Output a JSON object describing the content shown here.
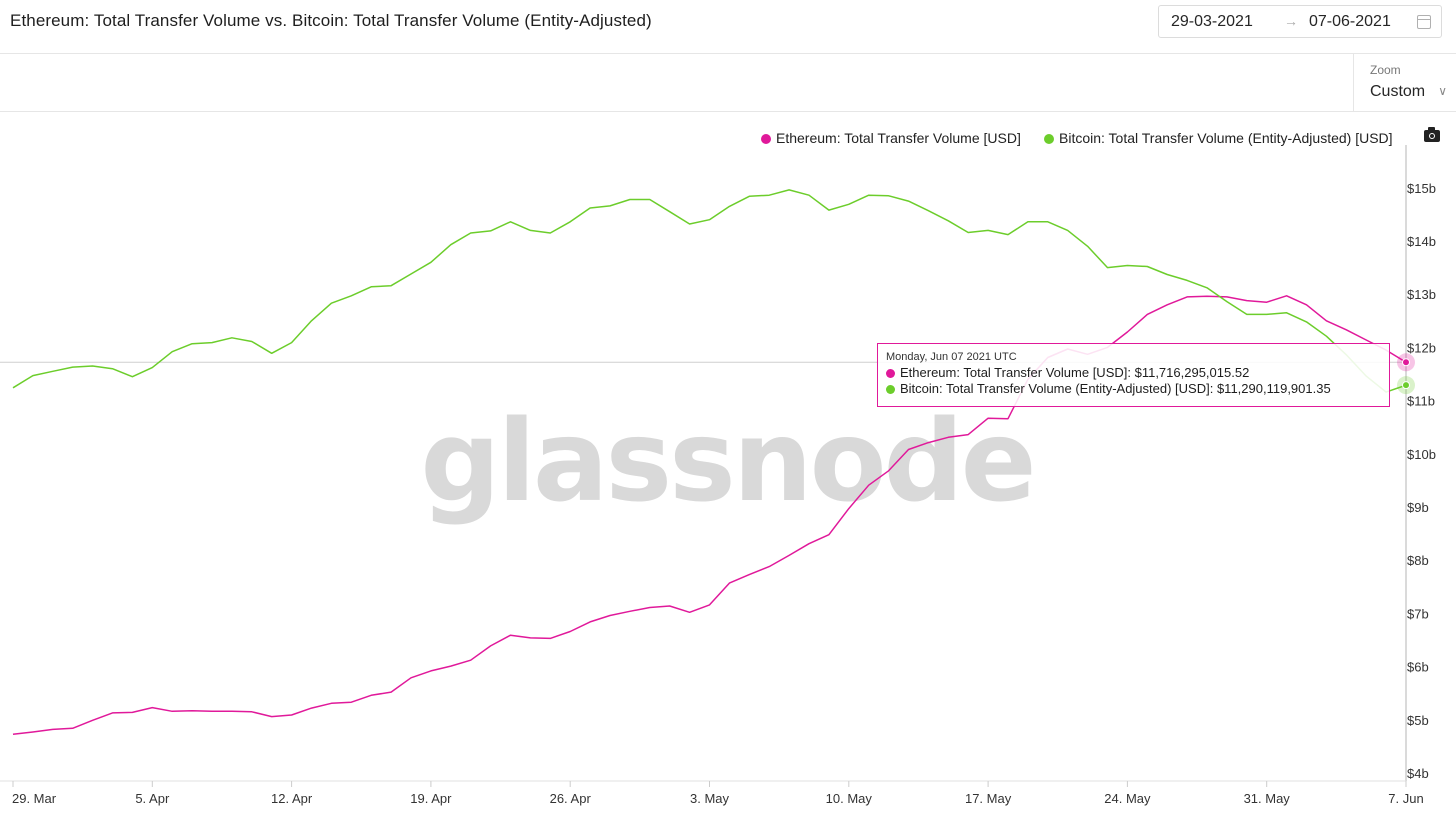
{
  "header": {
    "title": "Ethereum: Total Transfer Volume vs. Bitcoin: Total Transfer Volume (Entity-Adjusted)",
    "date_from": "29-03-2021",
    "date_arrow": "→",
    "date_to": "07-06-2021"
  },
  "zoom": {
    "label": "Zoom",
    "value": "Custom",
    "chevron": "∨"
  },
  "watermark": "glassnode",
  "colors": {
    "ethereum": "#e0199a",
    "bitcoin": "#6ccd2b"
  },
  "tooltip": {
    "date": "Monday, Jun 07 2021 UTC",
    "eth_label": "Ethereum: Total Transfer Volume [USD]: ",
    "eth_value": "$11,716,295,015.52",
    "btc_label": "Bitcoin: Total Transfer Volume (Entity-Adjusted) [USD]: ",
    "btc_value": "$11,290,119,901.35"
  },
  "chart_data": {
    "type": "line",
    "x_start": "2021-03-29",
    "x_step_days": 1,
    "x_ticks": [
      "29. Mar",
      "5. Apr",
      "12. Apr",
      "19. Apr",
      "26. Apr",
      "3. May",
      "10. May",
      "17. May",
      "24. May",
      "31. May",
      "7. Jun"
    ],
    "y_ticks": [
      "$4b",
      "$5b",
      "$6b",
      "$7b",
      "$8b",
      "$9b",
      "$10b",
      "$11b",
      "$12b",
      "$13b",
      "$14b",
      "$15b"
    ],
    "ylim": [
      4,
      15.5
    ],
    "y_unit": "billion USD",
    "legend_position": "top-right",
    "series": [
      {
        "name": "Ethereum: Total Transfer Volume [USD]",
        "color": "#e0199a",
        "values": [
          4.73,
          4.77,
          4.82,
          4.84,
          4.99,
          5.13,
          5.14,
          5.23,
          5.16,
          5.17,
          5.16,
          5.16,
          5.15,
          5.06,
          5.09,
          5.22,
          5.31,
          5.33,
          5.46,
          5.52,
          5.79,
          5.92,
          6.01,
          6.12,
          6.39,
          6.59,
          6.54,
          6.53,
          6.66,
          6.84,
          6.96,
          7.04,
          7.11,
          7.14,
          7.02,
          7.16,
          7.57,
          7.73,
          7.88,
          8.09,
          8.31,
          8.48,
          8.97,
          9.41,
          9.68,
          10.08,
          10.21,
          10.31,
          10.36,
          10.67,
          10.66,
          11.4,
          11.81,
          11.97,
          11.87,
          12.0,
          12.29,
          12.62,
          12.8,
          12.95,
          12.96,
          12.95,
          12.88,
          12.85,
          12.97,
          12.8,
          12.5,
          12.33,
          12.14,
          11.95,
          11.72
        ]
      },
      {
        "name": "Bitcoin: Total Transfer Volume (Entity-Adjusted) [USD]",
        "color": "#6ccd2b",
        "values": [
          11.24,
          11.47,
          11.55,
          11.63,
          11.65,
          11.6,
          11.45,
          11.62,
          11.92,
          12.07,
          12.09,
          12.18,
          12.11,
          11.89,
          12.09,
          12.5,
          12.83,
          12.97,
          13.14,
          13.16,
          13.38,
          13.6,
          13.93,
          14.15,
          14.19,
          14.36,
          14.2,
          14.15,
          14.36,
          14.62,
          14.66,
          14.78,
          14.78,
          14.55,
          14.32,
          14.4,
          14.65,
          14.84,
          14.86,
          14.96,
          14.86,
          14.58,
          14.69,
          14.86,
          14.85,
          14.75,
          14.57,
          14.38,
          14.16,
          14.2,
          14.12,
          14.36,
          14.36,
          14.2,
          13.9,
          13.5,
          13.54,
          13.52,
          13.37,
          13.26,
          13.12,
          12.86,
          12.62,
          12.62,
          12.65,
          12.48,
          12.21,
          11.86,
          11.46,
          11.16,
          11.29
        ]
      }
    ]
  }
}
